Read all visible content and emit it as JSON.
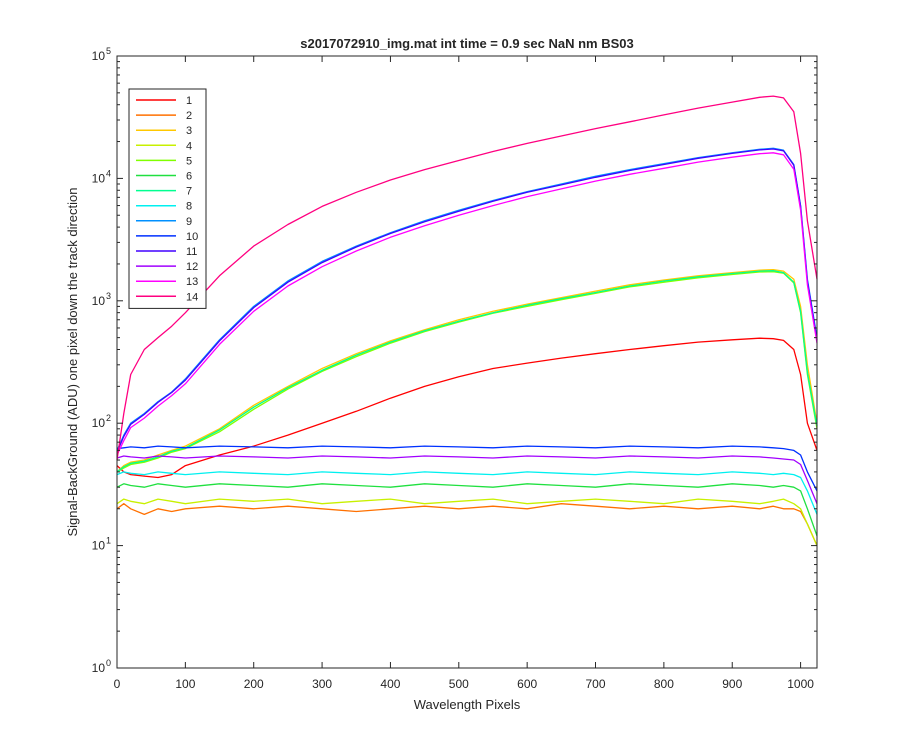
{
  "window": {
    "title": "s2017072910_img.mat int time = 0.9 sec  NaN nm BS03"
  },
  "chart_data": {
    "type": "line",
    "title": "s2017072910_img.mat int time = 0.9 sec  NaN nm BS03",
    "xlabel": "Wavelength Pixels",
    "ylabel": "Signal-BackGround (ADU) one pixel down the track direction",
    "xlim": [
      0,
      1024
    ],
    "ylim": [
      1,
      100000
    ],
    "yscale": "log",
    "grid": false,
    "legend_position": "top-left",
    "x_ticks": [
      0,
      100,
      200,
      300,
      400,
      500,
      600,
      700,
      800,
      900,
      1000
    ],
    "x_tick_labels": [
      "0",
      "100",
      "200",
      "300",
      "400",
      "500",
      "600",
      "700",
      "800",
      "900",
      "1000"
    ],
    "y_ticks": [
      1,
      10,
      100,
      1000,
      10000,
      100000
    ],
    "y_tick_base": "10",
    "y_tick_exponents": [
      "0",
      "1",
      "2",
      "3",
      "4",
      "5"
    ],
    "x": [
      0,
      10,
      20,
      40,
      60,
      80,
      100,
      150,
      200,
      250,
      300,
      350,
      400,
      450,
      500,
      550,
      600,
      650,
      700,
      750,
      800,
      850,
      900,
      940,
      960,
      975,
      990,
      1000,
      1010,
      1024
    ],
    "series": [
      {
        "name": "1",
        "color": "#ff0000",
        "values": [
          45,
          40,
          38,
          37,
          36,
          38,
          45,
          55,
          65,
          80,
          100,
          125,
          160,
          200,
          240,
          280,
          310,
          340,
          370,
          400,
          430,
          460,
          480,
          495,
          490,
          475,
          400,
          250,
          100,
          60
        ]
      },
      {
        "name": "2",
        "color": "#ff7000",
        "values": [
          20,
          22,
          20,
          18,
          20,
          19,
          20,
          21,
          20,
          21,
          20,
          19,
          20,
          21,
          20,
          21,
          20,
          22,
          21,
          20,
          21,
          20,
          21,
          20,
          21,
          20,
          20,
          19,
          15,
          10
        ]
      },
      {
        "name": "3",
        "color": "#ffc800",
        "values": [
          40,
          45,
          48,
          50,
          55,
          60,
          65,
          90,
          140,
          200,
          280,
          370,
          470,
          580,
          700,
          820,
          940,
          1060,
          1200,
          1350,
          1480,
          1600,
          1700,
          1780,
          1800,
          1750,
          1500,
          900,
          300,
          100
        ]
      },
      {
        "name": "4",
        "color": "#c8f000",
        "values": [
          22,
          24,
          23,
          22,
          24,
          23,
          22,
          24,
          23,
          24,
          22,
          23,
          24,
          22,
          23,
          24,
          22,
          23,
          24,
          23,
          22,
          24,
          23,
          22,
          23,
          24,
          22,
          20,
          15,
          10
        ]
      },
      {
        "name": "5",
        "color": "#80ff00",
        "values": [
          40,
          43,
          46,
          48,
          52,
          58,
          62,
          85,
          130,
          190,
          265,
          350,
          450,
          560,
          670,
          790,
          900,
          1020,
          1150,
          1300,
          1420,
          1540,
          1640,
          1720,
          1730,
          1680,
          1400,
          800,
          250,
          90
        ]
      },
      {
        "name": "6",
        "color": "#20e040",
        "values": [
          30,
          32,
          31,
          30,
          32,
          31,
          30,
          32,
          31,
          30,
          32,
          31,
          30,
          32,
          31,
          30,
          32,
          31,
          30,
          32,
          31,
          30,
          32,
          31,
          30,
          31,
          30,
          28,
          20,
          12
        ]
      },
      {
        "name": "7",
        "color": "#00ff90",
        "values": [
          40,
          44,
          47,
          49,
          53,
          59,
          63,
          88,
          135,
          195,
          270,
          360,
          460,
          570,
          680,
          800,
          920,
          1040,
          1170,
          1320,
          1450,
          1570,
          1670,
          1750,
          1760,
          1700,
          1420,
          820,
          260,
          95
        ]
      },
      {
        "name": "8",
        "color": "#00f0f0",
        "values": [
          38,
          40,
          39,
          38,
          40,
          39,
          38,
          40,
          39,
          38,
          40,
          39,
          38,
          40,
          39,
          38,
          40,
          39,
          38,
          40,
          39,
          38,
          40,
          39,
          38,
          39,
          38,
          36,
          28,
          18
        ]
      },
      {
        "name": "9",
        "color": "#0090ff",
        "values": [
          60,
          80,
          100,
          120,
          150,
          180,
          230,
          480,
          900,
          1450,
          2100,
          2800,
          3600,
          4500,
          5500,
          6600,
          7800,
          9000,
          10400,
          11800,
          13200,
          14800,
          16200,
          17300,
          17600,
          17000,
          13000,
          6000,
          1500,
          500
        ]
      },
      {
        "name": "10",
        "color": "#0030ff",
        "values": [
          62,
          63,
          64,
          63,
          65,
          64,
          63,
          65,
          64,
          63,
          65,
          64,
          63,
          65,
          64,
          63,
          65,
          64,
          63,
          65,
          64,
          63,
          65,
          64,
          63,
          62,
          60,
          55,
          40,
          28
        ]
      },
      {
        "name": "11",
        "color": "#4000ff",
        "values": [
          58,
          78,
          98,
          118,
          148,
          178,
          225,
          470,
          880,
          1420,
          2050,
          2750,
          3550,
          4420,
          5400,
          6500,
          7700,
          8850,
          10200,
          11600,
          13000,
          14600,
          16000,
          17100,
          17400,
          16800,
          12800,
          5900,
          1450,
          480
        ]
      },
      {
        "name": "12",
        "color": "#a000ff",
        "values": [
          52,
          54,
          53,
          52,
          54,
          53,
          52,
          54,
          53,
          52,
          54,
          53,
          52,
          54,
          53,
          52,
          54,
          53,
          52,
          54,
          53,
          52,
          54,
          53,
          52,
          51,
          50,
          46,
          34,
          22
        ]
      },
      {
        "name": "13",
        "color": "#ff00ff",
        "values": [
          55,
          72,
          92,
          110,
          138,
          168,
          210,
          440,
          820,
          1320,
          1900,
          2550,
          3300,
          4100,
          5000,
          6000,
          7100,
          8200,
          9500,
          10800,
          12100,
          13600,
          14900,
          15900,
          16200,
          15600,
          11900,
          5500,
          1350,
          450
        ]
      },
      {
        "name": "14",
        "color": "#ff0080",
        "values": [
          50,
          120,
          250,
          400,
          500,
          620,
          800,
          1600,
          2800,
          4200,
          5900,
          7700,
          9700,
          11800,
          14000,
          16600,
          19300,
          22200,
          25500,
          29000,
          33000,
          37500,
          42000,
          46000,
          47000,
          45500,
          35000,
          16000,
          4500,
          1500
        ]
      }
    ]
  }
}
